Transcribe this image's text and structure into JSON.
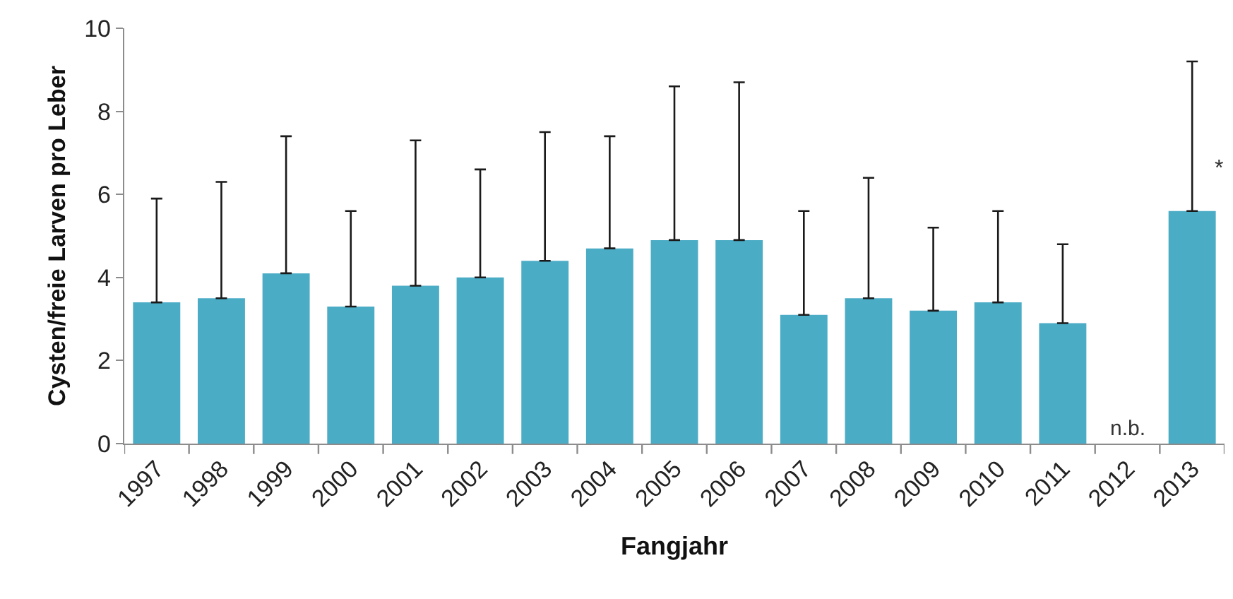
{
  "chart_data": {
    "type": "bar",
    "xlabel": "Fangjahr",
    "ylabel": "Cysten/freie Larven pro Leber",
    "categories": [
      "1997",
      "1998",
      "1999",
      "2000",
      "2001",
      "2002",
      "2003",
      "2004",
      "2005",
      "2006",
      "2007",
      "2008",
      "2009",
      "2010",
      "2011",
      "2012",
      "2013"
    ],
    "values": [
      3.4,
      3.5,
      4.1,
      3.3,
      3.8,
      4.0,
      4.4,
      4.7,
      4.9,
      4.9,
      3.1,
      3.5,
      3.2,
      3.4,
      2.9,
      null,
      5.6
    ],
    "errors": [
      [
        3.4,
        5.9
      ],
      [
        3.5,
        6.3
      ],
      [
        4.1,
        7.4
      ],
      [
        3.3,
        5.6
      ],
      [
        3.8,
        7.3
      ],
      [
        4.0,
        6.6
      ],
      [
        4.4,
        7.5
      ],
      [
        4.7,
        7.4
      ],
      [
        4.9,
        8.6
      ],
      [
        4.9,
        8.7
      ],
      [
        3.1,
        5.6
      ],
      [
        3.5,
        6.4
      ],
      [
        3.2,
        5.2
      ],
      [
        3.4,
        5.6
      ],
      [
        2.9,
        4.8
      ],
      null,
      [
        5.6,
        9.2
      ]
    ],
    "color": "#4bacc6",
    "ylim": [
      0,
      10
    ],
    "yticks": [
      0,
      2,
      4,
      6,
      8,
      10
    ],
    "annotations": [
      "n.b.",
      {
        "text": "*",
        "x": "2013",
        "y": 6.6
      }
    ]
  }
}
